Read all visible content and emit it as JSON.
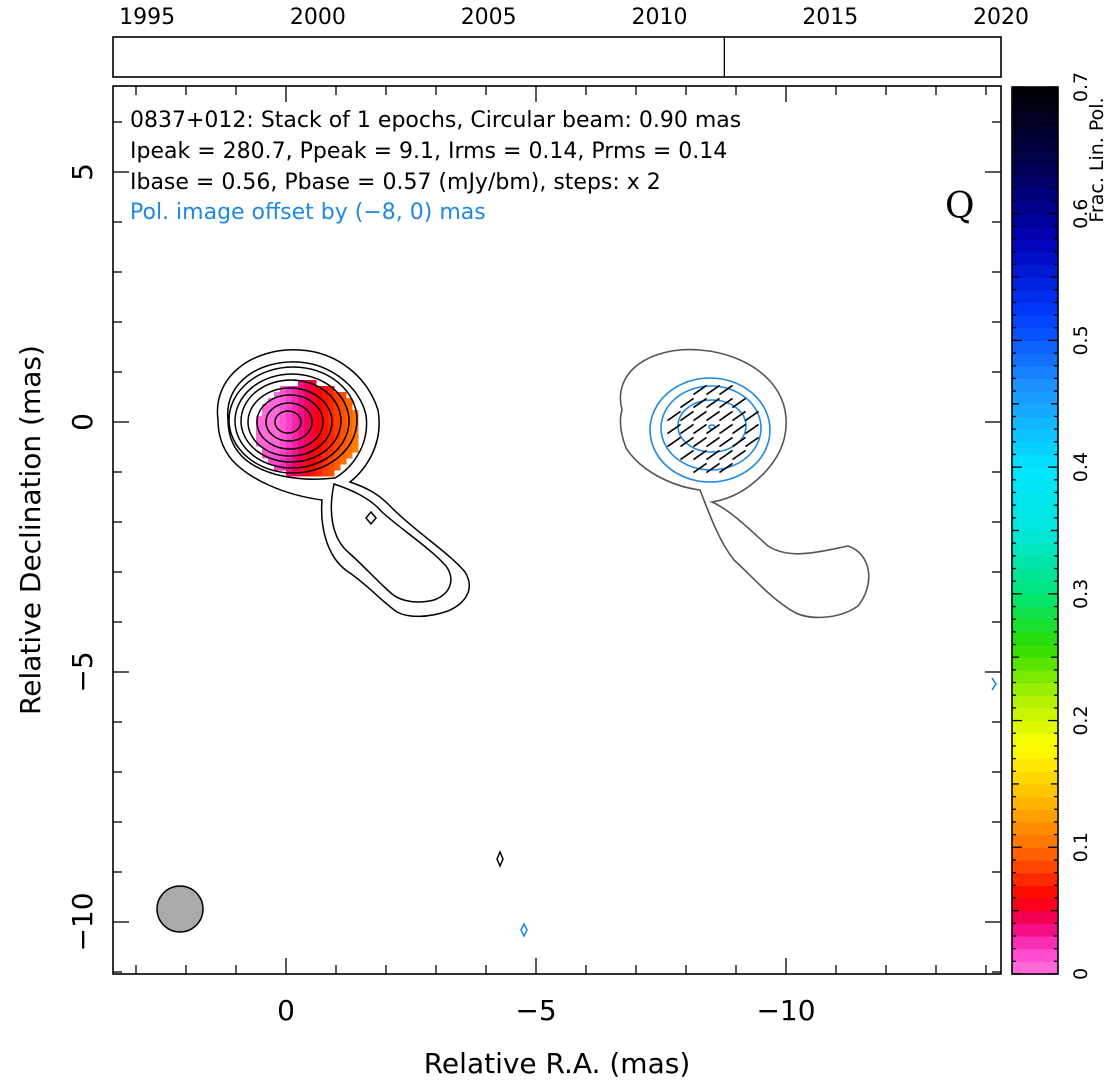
{
  "chart_data": {
    "type": "contour-map",
    "source": "0837+012",
    "annotation_lines": [
      "0837+012: Stack of 1 epochs, Circular beam: 0.90 mas",
      "Ipeak = 280.7, Ppeak = 9.1, Irms = 0.14, Prms = 0.14",
      "Ibase = 0.56, Pbase = 0.57 (mJy/bm), steps: x 2"
    ],
    "offset_note": "Pol. image offset by (−8, 0) mas",
    "stokes_label": "Q",
    "xlabel": "Relative R.A. (mas)",
    "ylabel": "Relative Declination (mas)",
    "xlim": [
      3.5,
      -14.3
    ],
    "ylim": [
      -11.0,
      6.7
    ],
    "xticks": [
      0,
      -5,
      -10
    ],
    "xtick_labels": [
      "0",
      "−5",
      "−10"
    ],
    "yticks": [
      5,
      0,
      -5,
      -10
    ],
    "ytick_labels": [
      "5",
      "0",
      "−5",
      "−10"
    ],
    "beam_diameter_mas": 0.9,
    "timeline": {
      "years": [
        1995,
        2000,
        2005,
        2010,
        2015,
        2020
      ],
      "range": [
        1994.0,
        2020.0
      ],
      "epochs": [
        2011.9
      ]
    },
    "colorbar": {
      "label": "Frac. Lin. Pol.",
      "range": [
        0,
        0.7
      ],
      "ticks": [
        0,
        0.1,
        0.2,
        0.3,
        0.4,
        0.5,
        0.6,
        0.7
      ],
      "tick_labels": [
        "0",
        "0.1",
        "0.2",
        "0.3",
        "0.4",
        "0.5",
        "0.6",
        "0.7"
      ]
    },
    "colors": {
      "pol_contour": "#1e88e5",
      "total_outer_contour": "#555555",
      "beam": "#aaaaaa",
      "offset_note": "#1e88e5"
    }
  }
}
